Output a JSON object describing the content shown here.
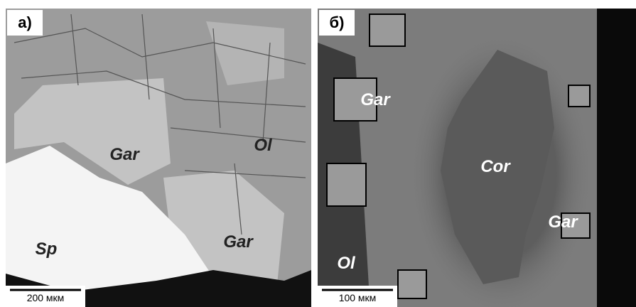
{
  "panels": [
    {
      "label": "а)",
      "annotations": [
        "Gar",
        "Ol",
        "Gar",
        "Sp"
      ],
      "scale_bar": "200 мкм"
    },
    {
      "label": "б)",
      "annotations": [
        "Gar",
        "Cor",
        "Gar",
        "Ol"
      ],
      "scale_bar": "100 мкм"
    }
  ]
}
